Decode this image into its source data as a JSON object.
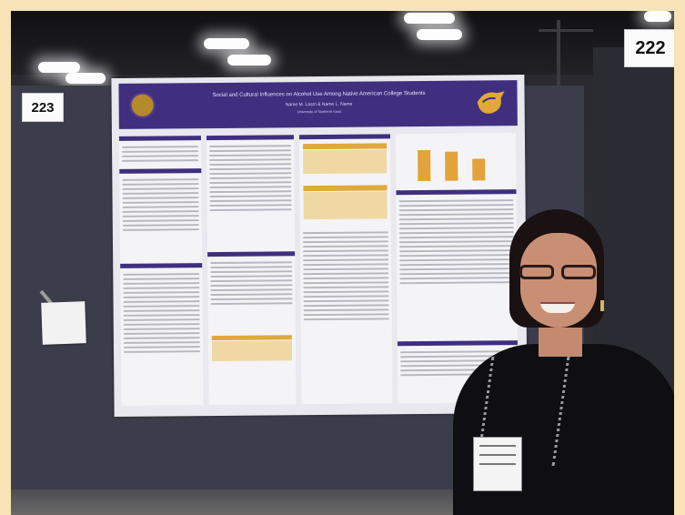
{
  "scene": {
    "description_labels": {
      "booth_sign_left": "223",
      "booth_sign_right": "222"
    }
  },
  "poster": {
    "title": "Social and Cultural Influences on Alcohol Use Among Native American College Students",
    "authors": "Name M. Lastn & Name L. Name",
    "affiliation": "University of Northern Iowa"
  },
  "colors": {
    "frame": "#f7e3b5",
    "poster_header": "#3f2f7e",
    "accent_gold": "#e3a33b"
  }
}
